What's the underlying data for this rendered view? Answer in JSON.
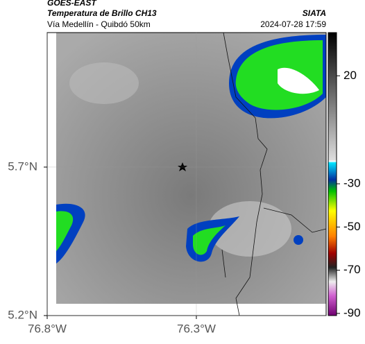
{
  "header": {
    "product": "GOES-EAST",
    "title": "Temperatura de Brillo CH13",
    "subtitle": "Vía Medellín - Quibdó 50km",
    "source": "SIATA",
    "datetime": "2024-07-28 17:59"
  },
  "map": {
    "xlim": [
      -76.8,
      -75.865
    ],
    "ylim": [
      5.2,
      6.153
    ],
    "xticks": [
      {
        "value": -76.8,
        "label": "76.8°W"
      },
      {
        "value": -76.3,
        "label": "76.3°W"
      }
    ],
    "yticks": [
      {
        "value": 5.2,
        "label": "5.2°N"
      },
      {
        "value": 5.7,
        "label": "5.7°N"
      }
    ],
    "grid": true
  },
  "colorbar": {
    "lim": [
      -91,
      40
    ],
    "ticks": [
      20,
      -30,
      -50,
      -70,
      -90
    ]
  }
}
